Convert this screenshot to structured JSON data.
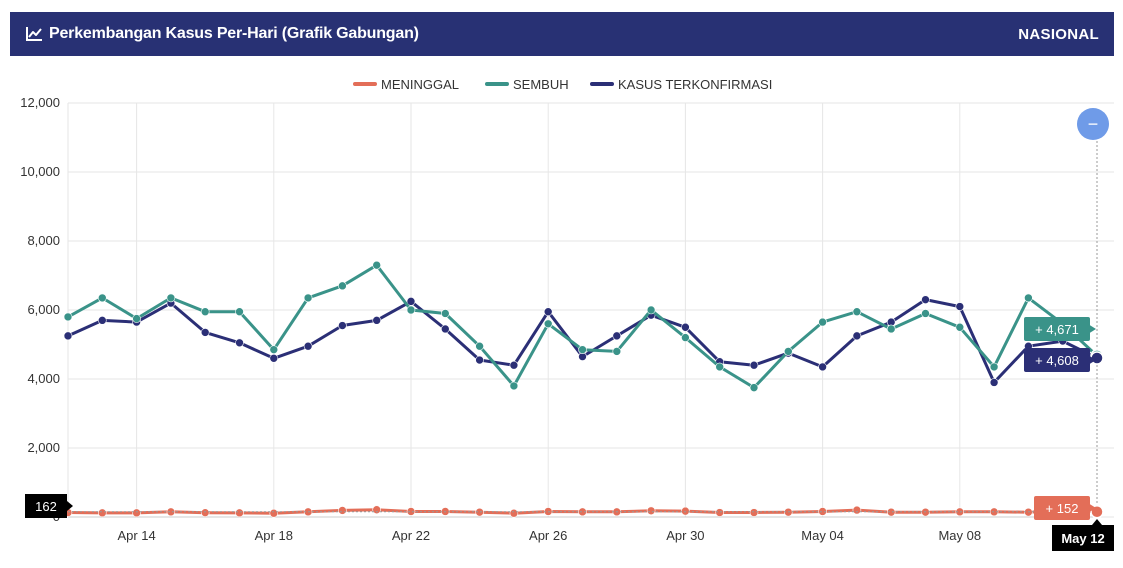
{
  "header": {
    "title": "Perkembangan Kasus Per-Hari (Grafik Gabungan)",
    "region": "NASIONAL",
    "chart_icon": "line-chart-icon"
  },
  "zoom_button": {
    "icon": "minus-icon",
    "label": "−"
  },
  "colors": {
    "header_bg": "#283174",
    "meninggal": "#e36e58",
    "sembuh": "#3a9389",
    "terkonfirmasi": "#2b2f76",
    "zoom": "#6f9be8"
  },
  "chart_data": {
    "type": "line",
    "title": "Perkembangan Kasus Per-Hari (Grafik Gabungan)",
    "ylim": [
      0,
      12000
    ],
    "yticks": [
      0,
      2000,
      4000,
      6000,
      8000,
      10000,
      12000
    ],
    "ytick_labels": [
      "0",
      "2,000",
      "4,000",
      "6,000",
      "8,000",
      "10,000",
      "12,000"
    ],
    "xlim": [
      "2021-04-12",
      "2021-05-12"
    ],
    "xtick_labels": [
      {
        "date": "2021-04-14",
        "label": "Apr 14"
      },
      {
        "date": "2021-04-18",
        "label": "Apr 18"
      },
      {
        "date": "2021-04-22",
        "label": "Apr 22"
      },
      {
        "date": "2021-04-26",
        "label": "Apr 26"
      },
      {
        "date": "2021-04-30",
        "label": "Apr 30"
      },
      {
        "date": "2021-05-04",
        "label": "May 04"
      },
      {
        "date": "2021-05-08",
        "label": "May 08"
      }
    ],
    "grid": true,
    "legend_position": "top-center",
    "x": [
      "2021-04-12",
      "2021-04-13",
      "2021-04-14",
      "2021-04-15",
      "2021-04-16",
      "2021-04-17",
      "2021-04-18",
      "2021-04-19",
      "2021-04-20",
      "2021-04-21",
      "2021-04-22",
      "2021-04-23",
      "2021-04-24",
      "2021-04-25",
      "2021-04-26",
      "2021-04-27",
      "2021-04-28",
      "2021-04-29",
      "2021-04-30",
      "2021-05-01",
      "2021-05-02",
      "2021-05-03",
      "2021-05-04",
      "2021-05-05",
      "2021-05-06",
      "2021-05-07",
      "2021-05-08",
      "2021-05-09",
      "2021-05-10",
      "2021-05-11",
      "2021-05-12"
    ],
    "series": [
      {
        "name": "MENINGGAL",
        "color": "#e36e58",
        "values": [
          130,
          120,
          120,
          150,
          125,
          120,
          110,
          150,
          190,
          210,
          160,
          160,
          140,
          110,
          160,
          150,
          150,
          180,
          170,
          130,
          130,
          140,
          160,
          200,
          140,
          140,
          150,
          150,
          140,
          190,
          152
        ]
      },
      {
        "name": "SEMBUH",
        "color": "#3a9389",
        "values": [
          5800,
          6350,
          5750,
          6350,
          5950,
          5950,
          4850,
          6350,
          6700,
          7300,
          6000,
          5900,
          4950,
          3800,
          5600,
          4850,
          4800,
          6000,
          5200,
          4350,
          3750,
          4800,
          5650,
          5950,
          5450,
          5900,
          5500,
          4350,
          6350,
          5600,
          4671
        ]
      },
      {
        "name": "KASUS TERKONFIRMASI",
        "color": "#2b2f76",
        "values": [
          5250,
          5700,
          5650,
          6200,
          5350,
          5050,
          4600,
          4950,
          5550,
          5700,
          6250,
          5450,
          4550,
          4400,
          5950,
          4650,
          5250,
          5850,
          5500,
          4500,
          4400,
          4750,
          4350,
          5250,
          5650,
          6300,
          6100,
          3900,
          4950,
          5100,
          4608
        ]
      }
    ],
    "tooltip": {
      "date_label": "May 12",
      "meninggal_label": "+ 152",
      "sembuh_label": "+ 4,671",
      "terkonfirmasi_label": "+ 4,608",
      "crosshair_y_label": "162"
    }
  }
}
